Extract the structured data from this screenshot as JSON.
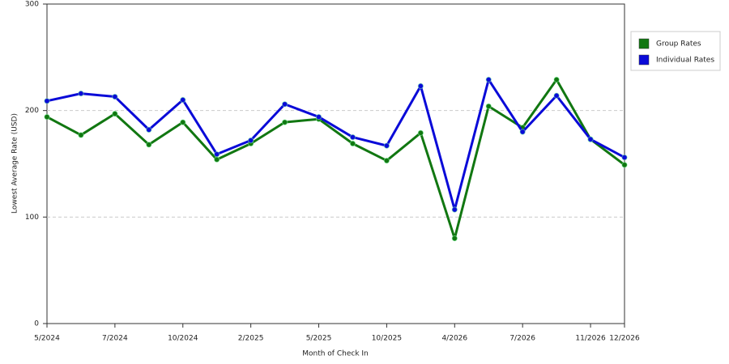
{
  "chart_data": {
    "type": "line",
    "x_label": "Month of Check In",
    "y_label": "Lowest Average Rate (USD)",
    "categories": [
      "5/2024",
      null,
      "7/2024",
      null,
      "10/2024",
      null,
      "2/2025",
      null,
      "5/2025",
      null,
      "10/2025",
      null,
      "4/2026",
      null,
      "7/2026",
      null,
      "11/2026",
      "12/2026"
    ],
    "series": [
      {
        "name": "Group Rates",
        "color": "#117711",
        "values": [
          194,
          177,
          197,
          168,
          189,
          154,
          169,
          189,
          192,
          169,
          153,
          179,
          80,
          204,
          184,
          229,
          173,
          149
        ]
      },
      {
        "name": "Individual Rates",
        "color": "#0a0ad8",
        "values": [
          209,
          216,
          213,
          182,
          210,
          159,
          172,
          206,
          194,
          175,
          167,
          223,
          107,
          229,
          180,
          214,
          173,
          156
        ]
      }
    ],
    "ylim": [
      0,
      300
    ],
    "yticks": [
      0,
      100,
      200,
      300
    ],
    "grid": true,
    "legend": "right"
  }
}
